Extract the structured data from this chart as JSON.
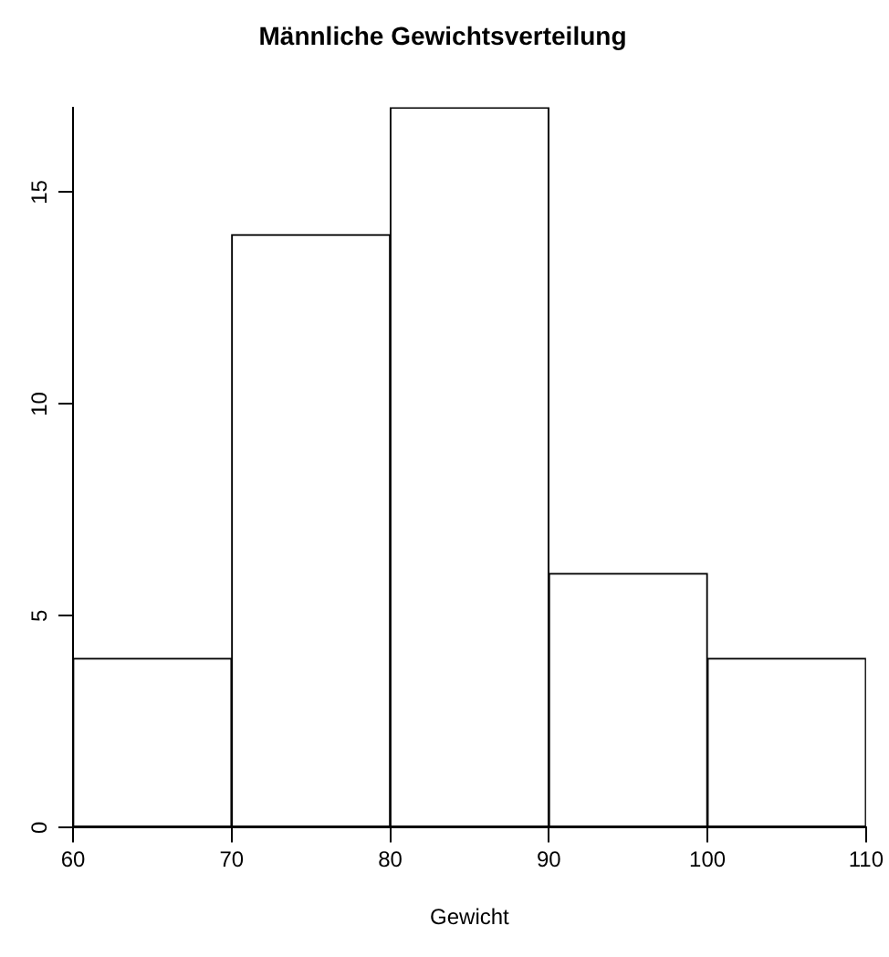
{
  "chart_data": {
    "type": "histogram",
    "title": "Männliche Gewichtsverteilung",
    "xlabel": "Gewicht",
    "bins": [
      60,
      70,
      80,
      90,
      100,
      110
    ],
    "values": [
      4,
      14,
      17,
      6,
      4
    ],
    "color": "#ffffff",
    "xlim": [
      60,
      110
    ],
    "xticks": [
      60,
      70,
      80,
      90,
      100,
      110
    ],
    "ylim": [
      0,
      17
    ],
    "yticks": [
      0,
      5,
      10,
      15
    ],
    "grid": false,
    "legend": false
  }
}
